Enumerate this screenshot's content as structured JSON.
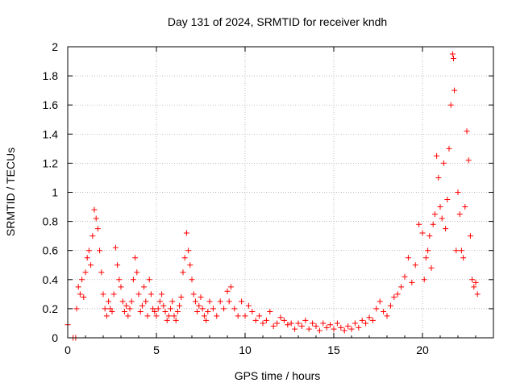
{
  "chart_data": {
    "type": "scatter",
    "title": "Day 131 of 2024, SRMTID for receiver kndh",
    "xlabel": "GPS time / hours",
    "ylabel": "SRMTID / TECUs",
    "xlim": [
      0,
      24
    ],
    "ylim": [
      0,
      2
    ],
    "xticks": [
      0,
      5,
      10,
      15,
      20
    ],
    "xtick_labels": [
      "0",
      "5",
      "10",
      "15",
      "20"
    ],
    "yticks": [
      0,
      0.2,
      0.4,
      0.6,
      0.8,
      1,
      1.2,
      1.4,
      1.6,
      1.8,
      2
    ],
    "ytick_labels": [
      "0",
      "0.2",
      "0.4",
      "0.6",
      "0.8",
      "1",
      "1.2",
      "1.4",
      "1.6",
      "1.8",
      "2"
    ],
    "grid": true,
    "marker": "+",
    "color": "#ff0000",
    "series": [
      {
        "name": "SRMTID",
        "points": [
          [
            0.0,
            0.09
          ],
          [
            0.3,
            0.0
          ],
          [
            0.45,
            0.0
          ],
          [
            0.5,
            0.2
          ],
          [
            0.6,
            0.35
          ],
          [
            0.7,
            0.3
          ],
          [
            0.8,
            0.4
          ],
          [
            0.9,
            0.28
          ],
          [
            1.0,
            0.45
          ],
          [
            1.1,
            0.55
          ],
          [
            1.2,
            0.6
          ],
          [
            1.3,
            0.5
          ],
          [
            1.4,
            0.7
          ],
          [
            1.5,
            0.88
          ],
          [
            1.6,
            0.82
          ],
          [
            1.7,
            0.75
          ],
          [
            1.8,
            0.6
          ],
          [
            1.9,
            0.45
          ],
          [
            2.0,
            0.3
          ],
          [
            2.1,
            0.2
          ],
          [
            2.2,
            0.15
          ],
          [
            2.3,
            0.25
          ],
          [
            2.4,
            0.2
          ],
          [
            2.5,
            0.18
          ],
          [
            2.6,
            0.3
          ],
          [
            2.7,
            0.62
          ],
          [
            2.8,
            0.5
          ],
          [
            2.9,
            0.4
          ],
          [
            3.0,
            0.35
          ],
          [
            3.1,
            0.25
          ],
          [
            3.2,
            0.18
          ],
          [
            3.3,
            0.22
          ],
          [
            3.4,
            0.15
          ],
          [
            3.5,
            0.2
          ],
          [
            3.6,
            0.25
          ],
          [
            3.7,
            0.4
          ],
          [
            3.8,
            0.55
          ],
          [
            3.9,
            0.45
          ],
          [
            4.0,
            0.3
          ],
          [
            4.1,
            0.18
          ],
          [
            4.2,
            0.22
          ],
          [
            4.3,
            0.35
          ],
          [
            4.4,
            0.25
          ],
          [
            4.5,
            0.15
          ],
          [
            4.6,
            0.4
          ],
          [
            4.7,
            0.3
          ],
          [
            4.8,
            0.2
          ],
          [
            4.9,
            0.18
          ],
          [
            5.0,
            0.15
          ],
          [
            5.1,
            0.2
          ],
          [
            5.2,
            0.25
          ],
          [
            5.3,
            0.3
          ],
          [
            5.4,
            0.22
          ],
          [
            5.5,
            0.18
          ],
          [
            5.6,
            0.12
          ],
          [
            5.7,
            0.15
          ],
          [
            5.8,
            0.2
          ],
          [
            5.9,
            0.25
          ],
          [
            6.0,
            0.15
          ],
          [
            6.1,
            0.12
          ],
          [
            6.2,
            0.18
          ],
          [
            6.3,
            0.22
          ],
          [
            6.4,
            0.28
          ],
          [
            6.5,
            0.45
          ],
          [
            6.6,
            0.55
          ],
          [
            6.7,
            0.72
          ],
          [
            6.8,
            0.6
          ],
          [
            6.9,
            0.5
          ],
          [
            7.0,
            0.4
          ],
          [
            7.1,
            0.3
          ],
          [
            7.2,
            0.25
          ],
          [
            7.3,
            0.18
          ],
          [
            7.4,
            0.22
          ],
          [
            7.5,
            0.28
          ],
          [
            7.6,
            0.2
          ],
          [
            7.7,
            0.15
          ],
          [
            7.8,
            0.12
          ],
          [
            7.9,
            0.18
          ],
          [
            8.0,
            0.25
          ],
          [
            8.2,
            0.2
          ],
          [
            8.4,
            0.15
          ],
          [
            8.6,
            0.25
          ],
          [
            8.8,
            0.2
          ],
          [
            9.0,
            0.32
          ],
          [
            9.1,
            0.25
          ],
          [
            9.2,
            0.35
          ],
          [
            9.4,
            0.2
          ],
          [
            9.6,
            0.15
          ],
          [
            9.8,
            0.25
          ],
          [
            10.0,
            0.15
          ],
          [
            10.2,
            0.22
          ],
          [
            10.4,
            0.18
          ],
          [
            10.6,
            0.12
          ],
          [
            10.8,
            0.15
          ],
          [
            11.0,
            0.1
          ],
          [
            11.2,
            0.12
          ],
          [
            11.4,
            0.18
          ],
          [
            11.6,
            0.08
          ],
          [
            11.8,
            0.1
          ],
          [
            12.0,
            0.14
          ],
          [
            12.2,
            0.12
          ],
          [
            12.4,
            0.09
          ],
          [
            12.6,
            0.1
          ],
          [
            12.8,
            0.06
          ],
          [
            13.0,
            0.1
          ],
          [
            13.2,
            0.08
          ],
          [
            13.4,
            0.12
          ],
          [
            13.6,
            0.06
          ],
          [
            13.8,
            0.1
          ],
          [
            14.0,
            0.08
          ],
          [
            14.2,
            0.05
          ],
          [
            14.4,
            0.1
          ],
          [
            14.6,
            0.07
          ],
          [
            14.8,
            0.09
          ],
          [
            15.0,
            0.06
          ],
          [
            15.2,
            0.1
          ],
          [
            15.4,
            0.07
          ],
          [
            15.6,
            0.05
          ],
          [
            15.8,
            0.08
          ],
          [
            16.0,
            0.06
          ],
          [
            16.2,
            0.1
          ],
          [
            16.4,
            0.07
          ],
          [
            16.6,
            0.12
          ],
          [
            16.8,
            0.1
          ],
          [
            17.0,
            0.14
          ],
          [
            17.2,
            0.12
          ],
          [
            17.4,
            0.2
          ],
          [
            17.6,
            0.25
          ],
          [
            17.8,
            0.18
          ],
          [
            18.0,
            0.15
          ],
          [
            18.2,
            0.22
          ],
          [
            18.4,
            0.28
          ],
          [
            18.6,
            0.3
          ],
          [
            18.8,
            0.35
          ],
          [
            19.0,
            0.42
          ],
          [
            19.2,
            0.55
          ],
          [
            19.4,
            0.38
          ],
          [
            19.6,
            0.5
          ],
          [
            19.8,
            0.78
          ],
          [
            20.0,
            0.72
          ],
          [
            20.1,
            0.4
          ],
          [
            20.2,
            0.55
          ],
          [
            20.3,
            0.6
          ],
          [
            20.4,
            0.7
          ],
          [
            20.5,
            0.48
          ],
          [
            20.6,
            0.78
          ],
          [
            20.7,
            0.85
          ],
          [
            20.8,
            1.25
          ],
          [
            20.9,
            1.1
          ],
          [
            21.0,
            0.9
          ],
          [
            21.1,
            0.82
          ],
          [
            21.2,
            1.2
          ],
          [
            21.3,
            0.75
          ],
          [
            21.4,
            0.95
          ],
          [
            21.5,
            1.3
          ],
          [
            21.6,
            1.6
          ],
          [
            21.7,
            1.95
          ],
          [
            21.75,
            1.92
          ],
          [
            21.8,
            1.7
          ],
          [
            21.9,
            0.6
          ],
          [
            22.0,
            1.0
          ],
          [
            22.1,
            0.85
          ],
          [
            22.2,
            0.6
          ],
          [
            22.3,
            0.55
          ],
          [
            22.4,
            0.9
          ],
          [
            22.5,
            1.42
          ],
          [
            22.6,
            1.22
          ],
          [
            22.7,
            0.7
          ],
          [
            22.8,
            0.4
          ],
          [
            22.9,
            0.35
          ],
          [
            23.0,
            0.38
          ],
          [
            23.1,
            0.3
          ]
        ]
      }
    ]
  }
}
